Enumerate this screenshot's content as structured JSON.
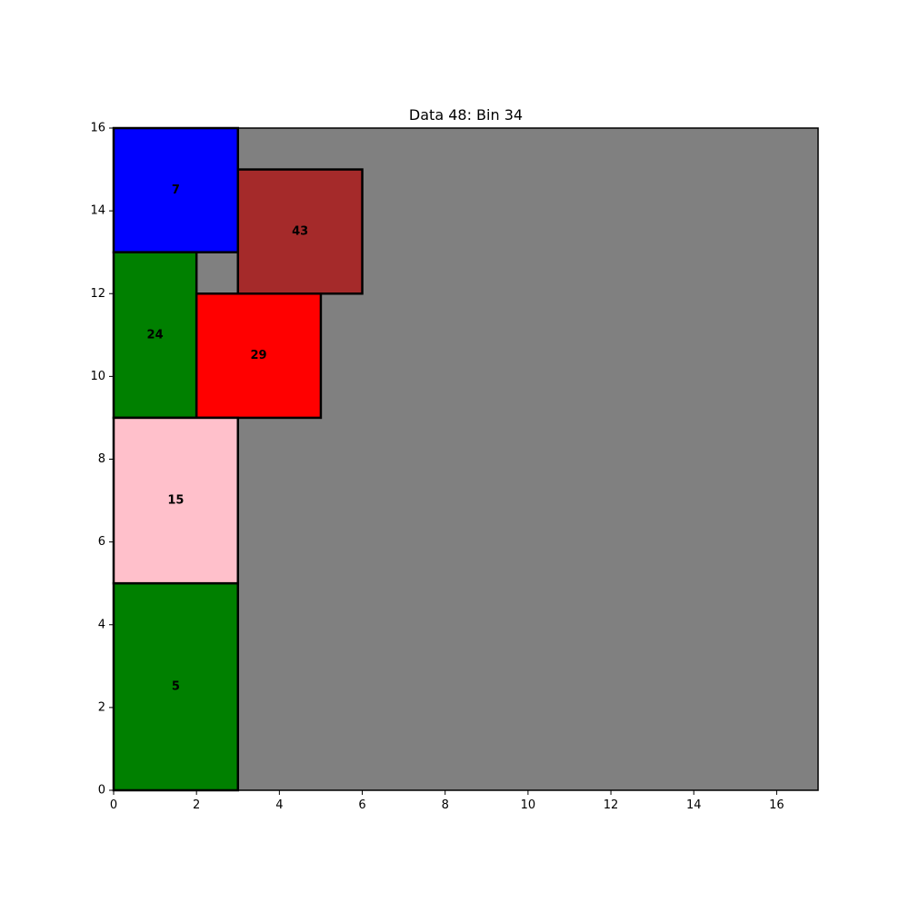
{
  "chart_data": {
    "type": "bin-packing",
    "title": "Data 48: Bin 34",
    "xlim": [
      0,
      17
    ],
    "ylim": [
      0,
      16
    ],
    "xticks": [
      0,
      2,
      4,
      6,
      8,
      10,
      12,
      14,
      16
    ],
    "yticks": [
      0,
      2,
      4,
      6,
      8,
      10,
      12,
      14,
      16
    ],
    "grid": false,
    "bin": {
      "width": 17,
      "height": 16,
      "color": "#808080"
    },
    "items": [
      {
        "label": "7",
        "x": 0,
        "y": 13,
        "w": 3,
        "h": 3,
        "color": "#0000ff"
      },
      {
        "label": "43",
        "x": 3,
        "y": 12,
        "w": 3,
        "h": 3,
        "color": "#a52a2a"
      },
      {
        "label": "24",
        "x": 0,
        "y": 9,
        "w": 2,
        "h": 4,
        "color": "#008000"
      },
      {
        "label": "29",
        "x": 2,
        "y": 9,
        "w": 3,
        "h": 3,
        "color": "#ff0000"
      },
      {
        "label": "15",
        "x": 0,
        "y": 5,
        "w": 3,
        "h": 4,
        "color": "#ffc0cb"
      },
      {
        "label": "5",
        "x": 0,
        "y": 0,
        "w": 3,
        "h": 5,
        "color": "#008000"
      }
    ]
  }
}
